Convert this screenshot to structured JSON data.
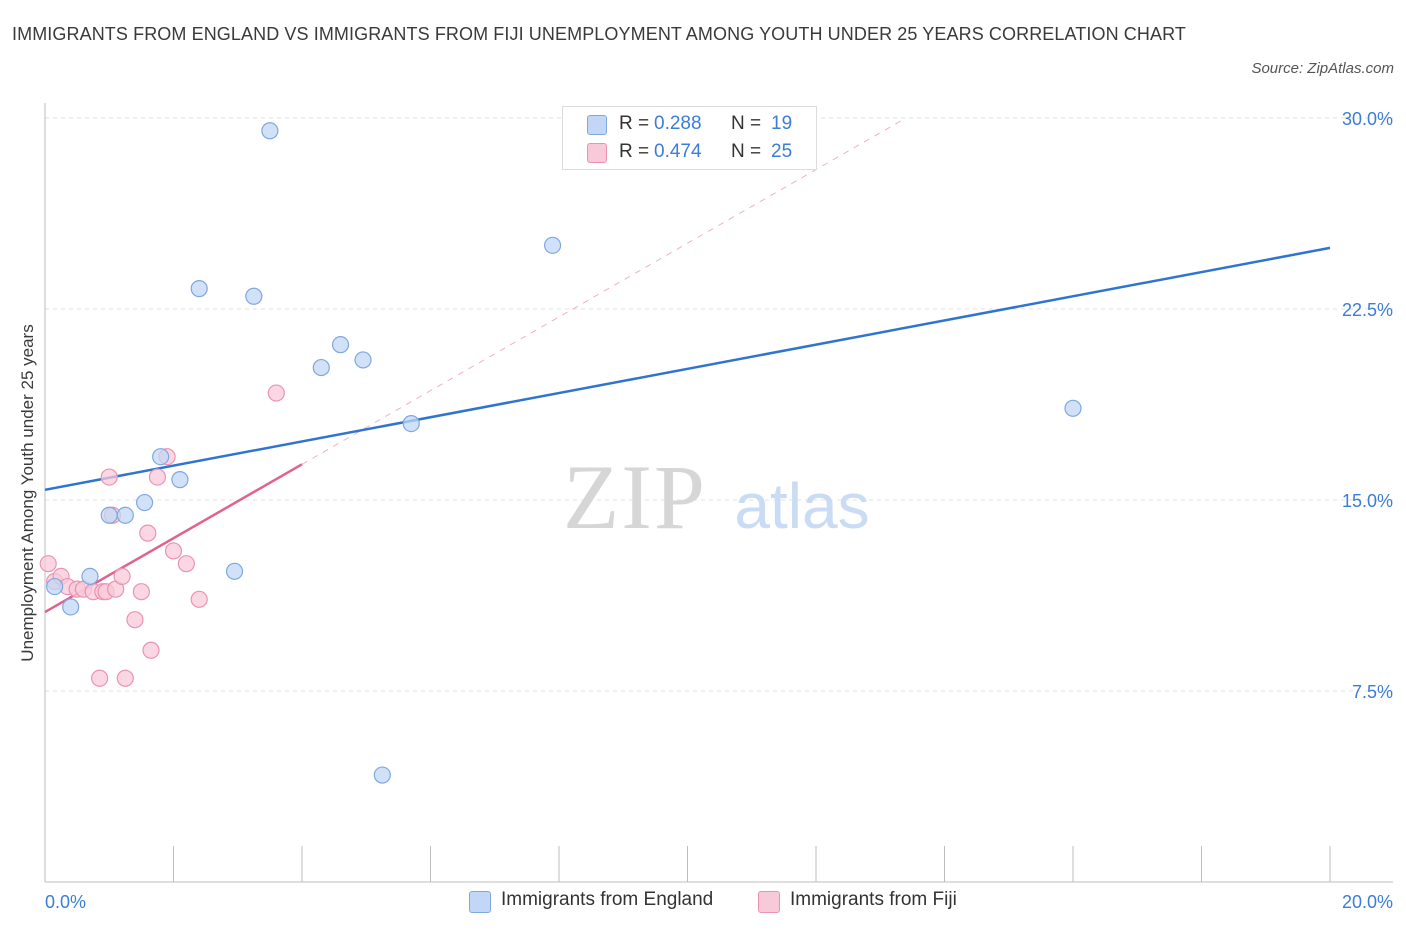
{
  "title": "IMMIGRANTS FROM ENGLAND VS IMMIGRANTS FROM FIJI UNEMPLOYMENT AMONG YOUTH UNDER 25 YEARS CORRELATION CHART",
  "source": "Source: ZipAtlas.com",
  "watermark": {
    "zip": "ZIP",
    "atlas": "atlas"
  },
  "legend": {
    "england": {
      "r_label": "R =",
      "r_value": "0.288",
      "n_label": "N =",
      "n_value": "19"
    },
    "fiji": {
      "r_label": "R =",
      "r_value": "0.474",
      "n_label": "N =",
      "n_value": "25"
    }
  },
  "colors": {
    "england_fill": "#c2d7f5",
    "england_stroke": "#7ea8e0",
    "england_line": "#2f74d0",
    "fiji_fill": "#f8c9d8",
    "fiji_stroke": "#eb93b1",
    "fiji_line": "#e0628e",
    "axis_text": "#3b7dd8"
  },
  "chart_data": {
    "type": "scatter",
    "xlabel": "",
    "ylabel": "Unemployment Among Youth under 25 years",
    "xlim": [
      0,
      20
    ],
    "ylim": [
      0,
      30
    ],
    "x_tick_labels": [
      "0.0%",
      "20.0%"
    ],
    "y_ticks": [
      7.5,
      15.0,
      22.5,
      30.0
    ],
    "y_tick_labels": [
      "7.5%",
      "15.0%",
      "22.5%",
      "30.0%"
    ],
    "grid": true,
    "legend_placement": "top-center",
    "series": [
      {
        "name": "Immigrants from England",
        "points": [
          [
            0.15,
            11.6
          ],
          [
            0.4,
            10.8
          ],
          [
            0.7,
            12.0
          ],
          [
            1.0,
            14.4
          ],
          [
            1.25,
            14.4
          ],
          [
            1.55,
            14.9
          ],
          [
            1.8,
            16.7
          ],
          [
            2.1,
            15.8
          ],
          [
            2.4,
            23.3
          ],
          [
            2.95,
            12.2
          ],
          [
            3.25,
            23.0
          ],
          [
            3.5,
            29.5
          ],
          [
            4.3,
            20.2
          ],
          [
            4.6,
            21.1
          ],
          [
            4.95,
            20.5
          ],
          [
            5.25,
            4.2
          ],
          [
            5.7,
            18.0
          ],
          [
            7.9,
            25.0
          ],
          [
            16.0,
            18.6
          ]
        ],
        "trend": {
          "x": [
            0,
            20
          ],
          "y": [
            15.4,
            24.9
          ]
        }
      },
      {
        "name": "Immigrants from Fiji",
        "points": [
          [
            0.05,
            12.5
          ],
          [
            0.15,
            11.8
          ],
          [
            0.25,
            12.0
          ],
          [
            0.35,
            11.6
          ],
          [
            0.5,
            11.5
          ],
          [
            0.6,
            11.5
          ],
          [
            0.75,
            11.4
          ],
          [
            0.85,
            8.0
          ],
          [
            0.9,
            11.4
          ],
          [
            0.95,
            11.4
          ],
          [
            1.0,
            15.9
          ],
          [
            1.05,
            14.4
          ],
          [
            1.1,
            11.5
          ],
          [
            1.2,
            12.0
          ],
          [
            1.25,
            8.0
          ],
          [
            1.4,
            10.3
          ],
          [
            1.5,
            11.4
          ],
          [
            1.6,
            13.7
          ],
          [
            1.65,
            9.1
          ],
          [
            1.75,
            15.9
          ],
          [
            1.9,
            16.7
          ],
          [
            2.0,
            13.0
          ],
          [
            2.2,
            12.5
          ],
          [
            2.4,
            11.1
          ],
          [
            3.6,
            19.2
          ]
        ],
        "trend": {
          "x": [
            0,
            4.0
          ],
          "y": [
            10.6,
            16.4
          ]
        },
        "trend_extension": {
          "x": [
            4.0,
            13.4
          ],
          "y": [
            16.4,
            30.0
          ]
        }
      }
    ]
  }
}
